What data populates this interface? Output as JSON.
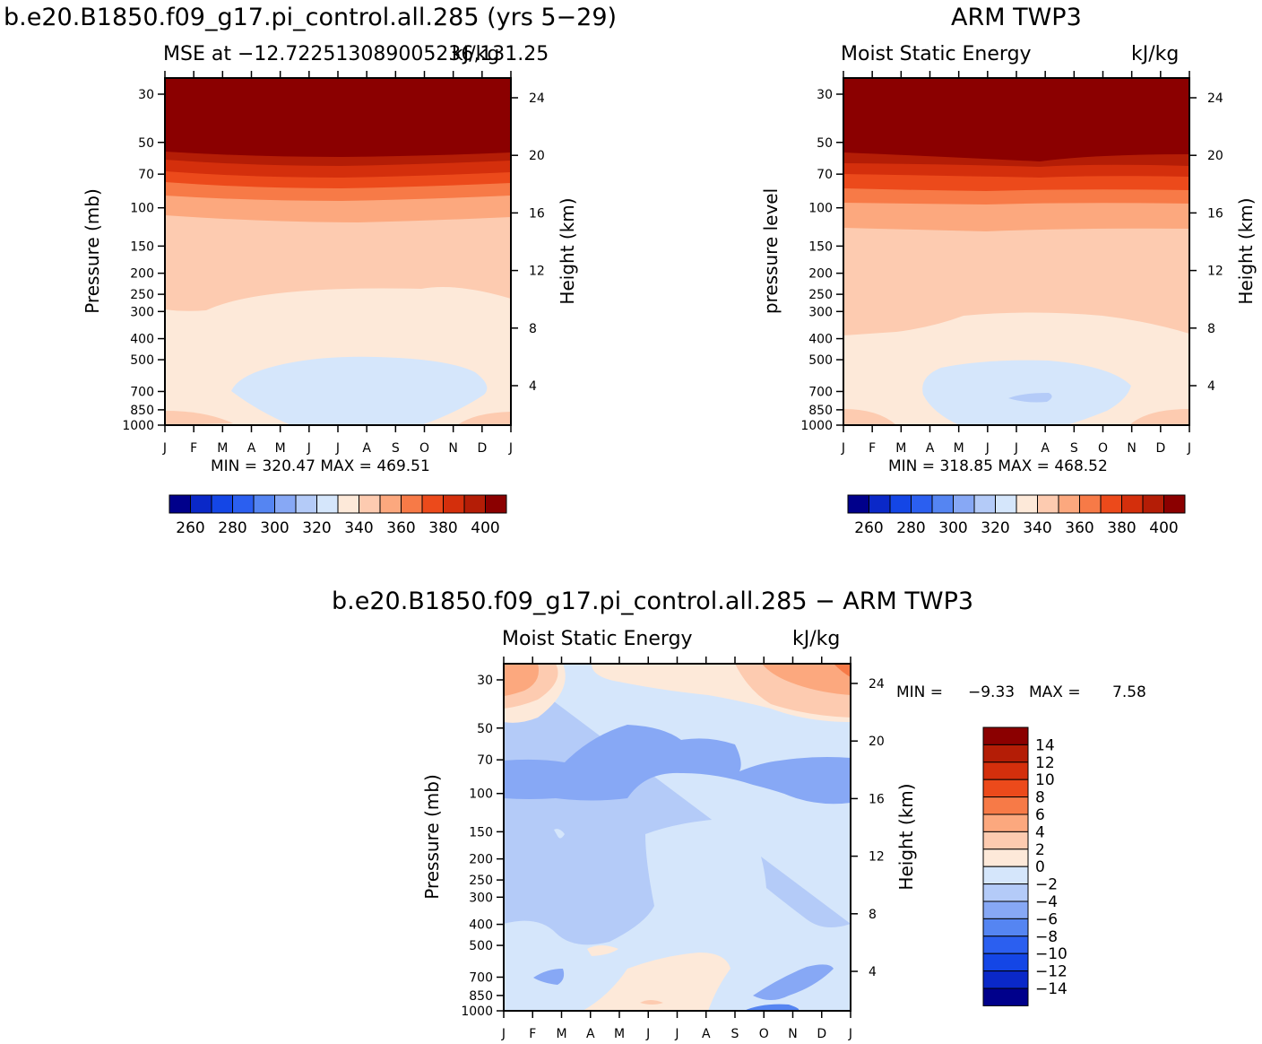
{
  "titles": {
    "top_left_main": "b.e20.B1850.f09_g17.pi_control.all.285 (yrs 5−29)",
    "top_right_main": "ARM TWP3",
    "bottom_main": "b.e20.B1850.f09_g17.pi_control.all.285 − ARM TWP3"
  },
  "chart_data": [
    {
      "type": "heatmap",
      "title": "MSE at −12.722513089005236,131.25",
      "units": "kJ/kg",
      "xlabel": "",
      "ylabel": "Pressure (mb)",
      "y2label": "Height (km)",
      "x_categories": [
        "J",
        "F",
        "M",
        "A",
        "M",
        "J",
        "J",
        "A",
        "S",
        "O",
        "N",
        "D",
        "J"
      ],
      "y_ticks": [
        "30",
        "50",
        "70",
        "100",
        "150",
        "200",
        "250",
        "300",
        "400",
        "500",
        "700",
        "850",
        "1000"
      ],
      "y_tick_values": [
        30,
        50,
        70,
        100,
        150,
        200,
        250,
        300,
        400,
        500,
        700,
        850,
        1000
      ],
      "y2_ticks": [
        "24",
        "20",
        "16",
        "12",
        "8",
        "4"
      ],
      "y2_tick_values": [
        24,
        20,
        16,
        12,
        8,
        4
      ],
      "stats": "MIN = 320.47 MAX = 469.51",
      "min": 320.47,
      "max": 469.51,
      "colorbar_labels": [
        "260",
        "280",
        "300",
        "320",
        "340",
        "360",
        "380",
        "400"
      ],
      "colorbar_colors": [
        "#00008b",
        "#0a28c8",
        "#1446e6",
        "#2b5ff0",
        "#5585f2",
        "#87a8f5",
        "#b4cbf8",
        "#d5e6fb",
        "#fde9d9",
        "#fdcbb0",
        "#fca87e",
        "#f77a47",
        "#ec4a1b",
        "#d42f0c",
        "#b41d06",
        "#8b0000"
      ]
    },
    {
      "type": "heatmap",
      "title": "Moist Static Energy",
      "units": "kJ/kg",
      "xlabel": "",
      "ylabel": "pressure level",
      "y2label": "Height (km)",
      "x_categories": [
        "J",
        "F",
        "M",
        "A",
        "M",
        "J",
        "J",
        "A",
        "S",
        "O",
        "N",
        "D",
        "J"
      ],
      "y_ticks": [
        "30",
        "50",
        "70",
        "100",
        "150",
        "200",
        "250",
        "300",
        "400",
        "500",
        "700",
        "850",
        "1000"
      ],
      "y_tick_values": [
        30,
        50,
        70,
        100,
        150,
        200,
        250,
        300,
        400,
        500,
        700,
        850,
        1000
      ],
      "y2_ticks": [
        "24",
        "20",
        "16",
        "12",
        "8",
        "4"
      ],
      "y2_tick_values": [
        24,
        20,
        16,
        12,
        8,
        4
      ],
      "stats": "MIN = 318.85 MAX = 468.52",
      "min": 318.85,
      "max": 468.52,
      "colorbar_labels": [
        "260",
        "280",
        "300",
        "320",
        "340",
        "360",
        "380",
        "400"
      ],
      "colorbar_colors": [
        "#00008b",
        "#0a28c8",
        "#1446e6",
        "#2b5ff0",
        "#5585f2",
        "#87a8f5",
        "#b4cbf8",
        "#d5e6fb",
        "#fde9d9",
        "#fdcbb0",
        "#fca87e",
        "#f77a47",
        "#ec4a1b",
        "#d42f0c",
        "#b41d06",
        "#8b0000"
      ]
    },
    {
      "type": "heatmap",
      "title": "Moist Static Energy",
      "units": "kJ/kg",
      "xlabel": "",
      "ylabel": "Pressure (mb)",
      "y2label": "Height (km)",
      "x_categories": [
        "J",
        "F",
        "M",
        "A",
        "M",
        "J",
        "J",
        "A",
        "S",
        "O",
        "N",
        "D",
        "J"
      ],
      "y_ticks": [
        "30",
        "50",
        "70",
        "100",
        "150",
        "200",
        "250",
        "300",
        "400",
        "500",
        "700",
        "850",
        "1000"
      ],
      "y_tick_values": [
        30,
        50,
        70,
        100,
        150,
        200,
        250,
        300,
        400,
        500,
        700,
        850,
        1000
      ],
      "y2_ticks": [
        "24",
        "20",
        "16",
        "12",
        "8",
        "4"
      ],
      "y2_tick_values": [
        24,
        20,
        16,
        12,
        8,
        4
      ],
      "stats_min_label": "MIN =",
      "stats_min": "−9.33",
      "stats_max_label": "MAX =",
      "stats_max": "7.58",
      "min": -9.33,
      "max": 7.58,
      "colorbar_labels": [
        "14",
        "12",
        "10",
        "8",
        "6",
        "4",
        "2",
        "0",
        "−2",
        "−4",
        "−6",
        "−8",
        "−10",
        "−12",
        "−14"
      ],
      "colorbar_colors": [
        "#8b0000",
        "#b41d06",
        "#d42f0c",
        "#ec4a1b",
        "#f77a47",
        "#fca87e",
        "#fdcbb0",
        "#fde9d9",
        "#d5e6fb",
        "#b4cbf8",
        "#87a8f5",
        "#5585f2",
        "#2b5ff0",
        "#1446e6",
        "#0a28c8",
        "#00008b"
      ]
    }
  ]
}
